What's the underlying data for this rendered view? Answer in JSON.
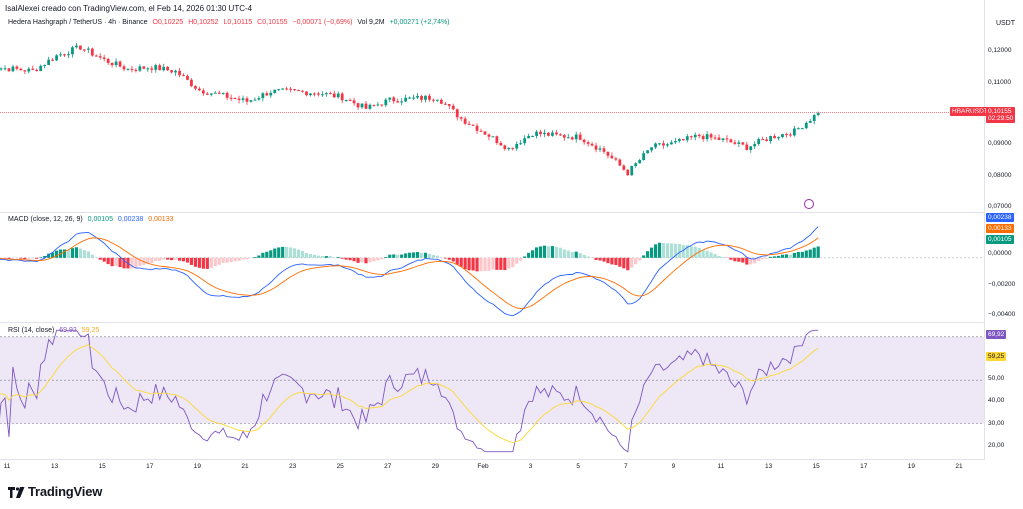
{
  "header": {
    "text": "IsalAlexei creado con TradingView.com, el Feb 14, 2026 01:30 UTC-4"
  },
  "currency": "USDT",
  "main_legend": {
    "symbol": "Hedera Hashgraph / TetherUS · 4h · Binance",
    "o": "O0,10225",
    "h": "H0,10252",
    "l": "L0,10115",
    "c": "C0,10155",
    "chg": "−0,00071 (−0,69%)",
    "vol": "Vol 9,2M",
    "vol_chg": "+0,00271 (+2,74%)"
  },
  "price_badge": {
    "symbol": "HBARUSDT",
    "price": "0,10155",
    "timer": "02:29:50"
  },
  "macd_legend": {
    "title": "MACD (close, 12, 26, 9)",
    "v1": "0,00105",
    "v2": "0,00238",
    "v3": "0,00133"
  },
  "rsi_legend": {
    "title": "RSI (14, close)",
    "v1": "69,92",
    "v2": "59,25"
  },
  "macd_badges": [
    "0,00238",
    "0,00133",
    "0,00105"
  ],
  "rsi_badges": [
    "69,92",
    "59,25"
  ],
  "brand": "TradingView",
  "colors": {
    "up": "#089981",
    "down": "#f23645",
    "macd": "#2962ff",
    "signal": "#ff6d00",
    "rsi": "#7e57c2",
    "rsi_ma": "#fdd835",
    "rsi_band": "#ede7f6"
  },
  "chart_data": [
    {
      "type": "candlestick",
      "title": "Hedera Hashgraph / TetherUS · 4h · Binance",
      "x_ticks": [
        "11",
        "13",
        "15",
        "17",
        "19",
        "21",
        "23",
        "25",
        "27",
        "29",
        "Feb",
        "3",
        "5",
        "7",
        "9",
        "11",
        "13",
        "15",
        "17",
        "19",
        "21"
      ],
      "y_ticks": [
        "0,12000",
        "0,11000",
        "0,10000",
        "0,09000",
        "0,08000",
        "0,07000"
      ],
      "ylim": [
        0.0682,
        0.1305
      ],
      "close_path_points": [
        {
          "x": "Jan 10",
          "close": 0.1175
        },
        {
          "x": "Jan 11",
          "close": 0.117
        },
        {
          "x": "Jan 12",
          "close": 0.1162
        },
        {
          "x": "Jan 13",
          "close": 0.1215
        },
        {
          "x": "Jan 14",
          "close": 0.1245
        },
        {
          "x": "Jan 15",
          "close": 0.12
        },
        {
          "x": "Jan 16",
          "close": 0.1168
        },
        {
          "x": "Jan 17",
          "close": 0.1175
        },
        {
          "x": "Jan 18",
          "close": 0.116
        },
        {
          "x": "Jan 19",
          "close": 0.1095
        },
        {
          "x": "Jan 20",
          "close": 0.1075
        },
        {
          "x": "Jan 21",
          "close": 0.1055
        },
        {
          "x": "Jan 22",
          "close": 0.109
        },
        {
          "x": "Jan 23",
          "close": 0.109
        },
        {
          "x": "Jan 24",
          "close": 0.1085
        },
        {
          "x": "Jan 25",
          "close": 0.107
        },
        {
          "x": "Jan 26",
          "close": 0.103
        },
        {
          "x": "Jan 27",
          "close": 0.106
        },
        {
          "x": "Jan 28",
          "close": 0.1065
        },
        {
          "x": "Jan 29",
          "close": 0.107
        },
        {
          "x": "Jan 30",
          "close": 0.0995
        },
        {
          "x": "Jan 31",
          "close": 0.0945
        },
        {
          "x": "Feb 1",
          "close": 0.089
        },
        {
          "x": "Feb 2",
          "close": 0.0945
        },
        {
          "x": "Feb 3",
          "close": 0.0935
        },
        {
          "x": "Feb 4",
          "close": 0.093
        },
        {
          "x": "Feb 5",
          "close": 0.088
        },
        {
          "x": "Feb 6",
          "close": 0.0805
        },
        {
          "x": "Feb 7",
          "close": 0.0895
        },
        {
          "x": "Feb 8",
          "close": 0.091
        },
        {
          "x": "Feb 9",
          "close": 0.0935
        },
        {
          "x": "Feb 10",
          "close": 0.092
        },
        {
          "x": "Feb 11",
          "close": 0.0895
        },
        {
          "x": "Feb 12",
          "close": 0.093
        },
        {
          "x": "Feb 13",
          "close": 0.095
        },
        {
          "x": "Feb 14",
          "close": 0.1015
        }
      ],
      "last_price": 0.10155
    },
    {
      "type": "line",
      "title": "MACD (close, 12, 26, 9)",
      "y_ticks": [
        "0,00000",
        "−0,00200",
        "−0,00400"
      ],
      "ylim": [
        -0.0043,
        0.0027
      ],
      "zero_line": 0
    },
    {
      "type": "line",
      "title": "RSI (14, close)",
      "y_ticks": [
        "50,00",
        "40,00",
        "30,00",
        "20,00"
      ],
      "ylim": [
        15,
        75
      ],
      "band": [
        30,
        70
      ],
      "midline": 50
    }
  ]
}
